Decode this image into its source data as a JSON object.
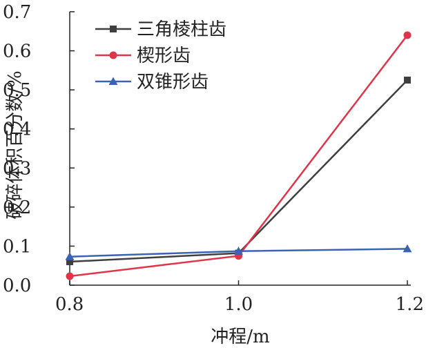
{
  "chart_data": {
    "type": "line",
    "title": "",
    "xlabel": "冲程/m",
    "ylabel": "破碎体积百分数/%",
    "x": [
      0.8,
      1.0,
      1.2
    ],
    "x_ticks": [
      "0.8",
      "1.0",
      "1.2"
    ],
    "xlim": [
      0.8,
      1.2
    ],
    "y_ticks": [
      "0.0",
      "0.1",
      "0.2",
      "0.3",
      "0.4",
      "0.5",
      "0.6",
      "0.7"
    ],
    "ylim": [
      0.0,
      0.7
    ],
    "grid": false,
    "legend_position": "top-left",
    "series": [
      {
        "name": "三角棱柱齿",
        "values": [
          0.06,
          0.082,
          0.525
        ],
        "color": "#3f3f3f",
        "marker": "square"
      },
      {
        "name": "楔形齿",
        "values": [
          0.023,
          0.075,
          0.64
        ],
        "color": "#e0344a",
        "marker": "circle"
      },
      {
        "name": "双锥形齿",
        "values": [
          0.073,
          0.087,
          0.093
        ],
        "color": "#3a62b5",
        "marker": "triangle"
      }
    ]
  }
}
